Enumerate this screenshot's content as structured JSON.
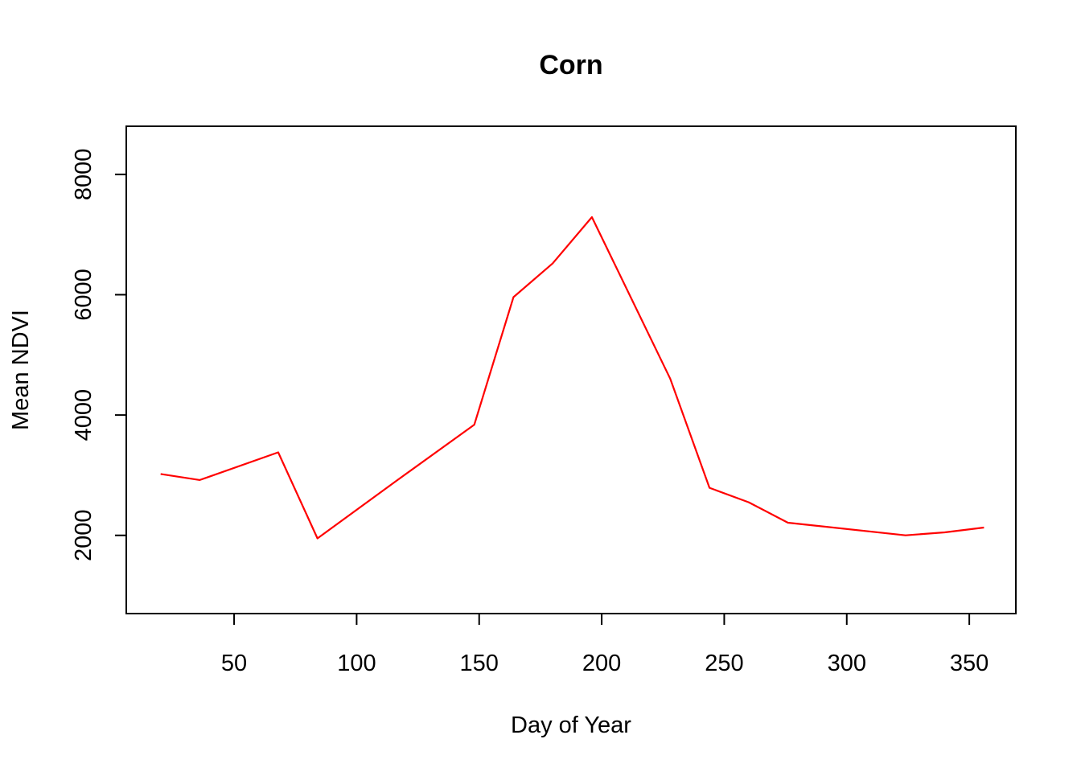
{
  "chart_data": {
    "type": "line",
    "title": "Corn",
    "xlabel": "Day of Year",
    "ylabel": "Mean NDVI",
    "xlim": [
      6,
      369
    ],
    "ylim": [
      700,
      8800
    ],
    "x_ticks": [
      50,
      100,
      150,
      200,
      250,
      300,
      350
    ],
    "y_ticks": [
      2000,
      4000,
      6000,
      8000
    ],
    "grid": false,
    "legend": "none",
    "series": [
      {
        "color": "#ff0000",
        "x": [
          20,
          36,
          68,
          84,
          116,
          148,
          164,
          180,
          196,
          228,
          244,
          260,
          276,
          324,
          340,
          356
        ],
        "y": [
          3020,
          2920,
          3380,
          1950,
          2900,
          3840,
          5960,
          6520,
          7290,
          4600,
          2790,
          2550,
          2210,
          2000,
          2050,
          2130
        ]
      }
    ]
  }
}
